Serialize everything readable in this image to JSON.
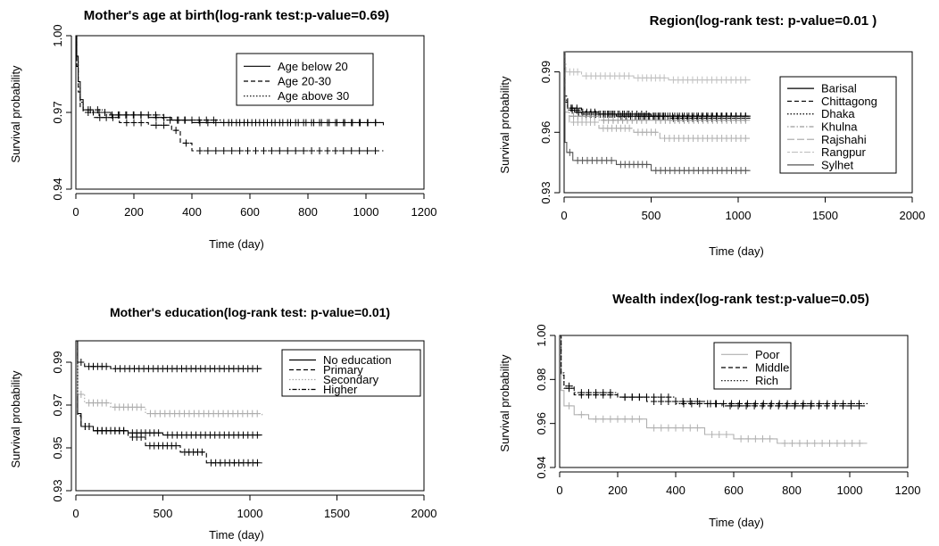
{
  "figure": {
    "ylabel": "Survival probability",
    "xlabel": "Time (day)"
  },
  "chart_data": [
    {
      "type": "line",
      "title": "Mother's age at birth(log-rank test:p-value=0.69)",
      "xlabel": "Time (day)",
      "ylabel": "Survival probability",
      "xlim": [
        0,
        1200
      ],
      "ylim": [
        0.94,
        1.0
      ],
      "xticks": [
        "0",
        "200",
        "400",
        "600",
        "800",
        "1000",
        "1200"
      ],
      "yticks": [
        "0.94",
        "0.97",
        "1.00"
      ],
      "legend": "top-right",
      "series": [
        {
          "name": "Age below 20",
          "style": "solid",
          "color": "#000000",
          "x": [
            0,
            3,
            8,
            15,
            25,
            60,
            120,
            250,
            330,
            400,
            1060
          ],
          "y": [
            1.0,
            0.992,
            0.982,
            0.975,
            0.971,
            0.97,
            0.969,
            0.968,
            0.967,
            0.966,
            0.965
          ]
        },
        {
          "name": "Age 20-30",
          "style": "dashed",
          "color": "#000000",
          "x": [
            0,
            3,
            8,
            15,
            25,
            60,
            150,
            250,
            330,
            360,
            400,
            1060
          ],
          "y": [
            1.0,
            0.988,
            0.978,
            0.972,
            0.97,
            0.968,
            0.966,
            0.965,
            0.963,
            0.958,
            0.955,
            0.955
          ]
        },
        {
          "name": "Age above 30",
          "style": "dotted",
          "color": "#000000",
          "x": [
            0,
            3,
            8,
            15,
            25,
            100,
            300,
            500,
            1060
          ],
          "y": [
            1.0,
            0.99,
            0.98,
            0.974,
            0.971,
            0.969,
            0.967,
            0.966,
            0.966
          ]
        }
      ]
    },
    {
      "type": "line",
      "title": "Region(log-rank test: p-value=0.01 )",
      "xlabel": "Time (day)",
      "ylabel": "Survival probability",
      "xlim": [
        0,
        2000
      ],
      "ylim": [
        0.93,
        1.0
      ],
      "xticks": [
        "0",
        "500",
        "1000",
        "1500",
        "2000"
      ],
      "yticks": [
        "0.93",
        "0.96",
        "0.99"
      ],
      "legend": "right",
      "series": [
        {
          "name": "Barisal",
          "style": "solid",
          "color": "#000000",
          "x": [
            0,
            5,
            20,
            60,
            200,
            500,
            1070
          ],
          "y": [
            1.0,
            0.975,
            0.972,
            0.97,
            0.969,
            0.968,
            0.968
          ]
        },
        {
          "name": "Chittagong",
          "style": "dashed",
          "color": "#000000",
          "x": [
            0,
            5,
            20,
            100,
            300,
            600,
            1070
          ],
          "y": [
            1.0,
            0.978,
            0.972,
            0.969,
            0.968,
            0.967,
            0.967
          ]
        },
        {
          "name": "Dhaka",
          "style": "dotted",
          "color": "#000000",
          "x": [
            0,
            5,
            20,
            100,
            400,
            1070
          ],
          "y": [
            1.0,
            0.976,
            0.971,
            0.969,
            0.968,
            0.968
          ]
        },
        {
          "name": "Khulna",
          "style": "dotdash",
          "color": "#9a9a9a",
          "x": [
            0,
            5,
            30,
            200,
            500,
            1070
          ],
          "y": [
            1.0,
            0.972,
            0.968,
            0.966,
            0.966,
            0.966
          ]
        },
        {
          "name": "Rajshahi",
          "style": "longdash",
          "color": "#b0b0b0",
          "x": [
            0,
            5,
            30,
            200,
            400,
            550,
            1070
          ],
          "y": [
            1.0,
            0.97,
            0.965,
            0.962,
            0.96,
            0.957,
            0.957
          ]
        },
        {
          "name": "Rangpur",
          "style": "twodash",
          "color": "#c0c0c0",
          "x": [
            0,
            5,
            10,
            100,
            400,
            600,
            1070
          ],
          "y": [
            1.0,
            0.994,
            0.99,
            0.988,
            0.987,
            0.986,
            0.986
          ]
        },
        {
          "name": "Sylhet",
          "style": "solid",
          "color": "#555555",
          "x": [
            0,
            5,
            15,
            50,
            300,
            500,
            1070
          ],
          "y": [
            1.0,
            0.955,
            0.95,
            0.946,
            0.944,
            0.941,
            0.941
          ]
        }
      ]
    },
    {
      "type": "line",
      "title": "Mother's education(log-rank test: p-value=0.01)",
      "xlabel": "Time (day)",
      "ylabel": "Survival probability",
      "xlim": [
        0,
        2000
      ],
      "ylim": [
        0.93,
        1.0
      ],
      "xticks": [
        "0",
        "500",
        "1000",
        "1500",
        "2000"
      ],
      "yticks": [
        "0.93",
        "0.95",
        "0.97",
        "0.99"
      ],
      "legend": "top-right",
      "series": [
        {
          "name": "No education",
          "style": "solid",
          "color": "#000000",
          "x": [
            0,
            10,
            30,
            100,
            300,
            500,
            1070
          ],
          "y": [
            1.0,
            0.966,
            0.96,
            0.958,
            0.957,
            0.956,
            0.956
          ]
        },
        {
          "name": "Primary",
          "style": "dashed",
          "color": "#000000",
          "x": [
            0,
            10,
            30,
            100,
            300,
            400,
            600,
            750,
            1070
          ],
          "y": [
            1.0,
            0.965,
            0.96,
            0.958,
            0.955,
            0.951,
            0.948,
            0.943,
            0.943
          ]
        },
        {
          "name": "Secondary",
          "style": "dotted",
          "color": "#aaaaaa",
          "x": [
            0,
            10,
            50,
            200,
            400,
            1070
          ],
          "y": [
            1.0,
            0.975,
            0.971,
            0.969,
            0.966,
            0.965
          ]
        },
        {
          "name": "Higher",
          "style": "dotdash",
          "color": "#000000",
          "x": [
            0,
            10,
            50,
            200,
            1070
          ],
          "y": [
            1.0,
            0.99,
            0.988,
            0.987,
            0.987
          ]
        }
      ]
    },
    {
      "type": "line",
      "title": "Wealth index(log-rank test:p-value=0.05)",
      "xlabel": "Time (day)",
      "ylabel": "Survival probability",
      "xlim": [
        0,
        1200
      ],
      "ylim": [
        0.94,
        1.0
      ],
      "xticks": [
        "0",
        "200",
        "400",
        "600",
        "800",
        "1000",
        "1200"
      ],
      "yticks": [
        "0.94",
        "0.96",
        "0.98",
        "1.00"
      ],
      "legend": "top-center",
      "series": [
        {
          "name": "Poor",
          "style": "solid",
          "color": "#b0b0b0",
          "x": [
            0,
            5,
            15,
            50,
            100,
            300,
            500,
            600,
            750,
            1060
          ],
          "y": [
            1.0,
            0.975,
            0.968,
            0.964,
            0.962,
            0.958,
            0.955,
            0.953,
            0.951,
            0.951
          ]
        },
        {
          "name": "Middle",
          "style": "dashed",
          "color": "#000000",
          "x": [
            0,
            5,
            15,
            50,
            200,
            300,
            500,
            560,
            1060
          ],
          "y": [
            1.0,
            0.982,
            0.976,
            0.973,
            0.972,
            0.97,
            0.969,
            0.968,
            0.968
          ]
        },
        {
          "name": "Rich",
          "style": "dotted",
          "color": "#000000",
          "x": [
            0,
            5,
            15,
            50,
            200,
            400,
            1060
          ],
          "y": [
            1.0,
            0.983,
            0.977,
            0.974,
            0.972,
            0.969,
            0.968
          ]
        }
      ]
    }
  ]
}
